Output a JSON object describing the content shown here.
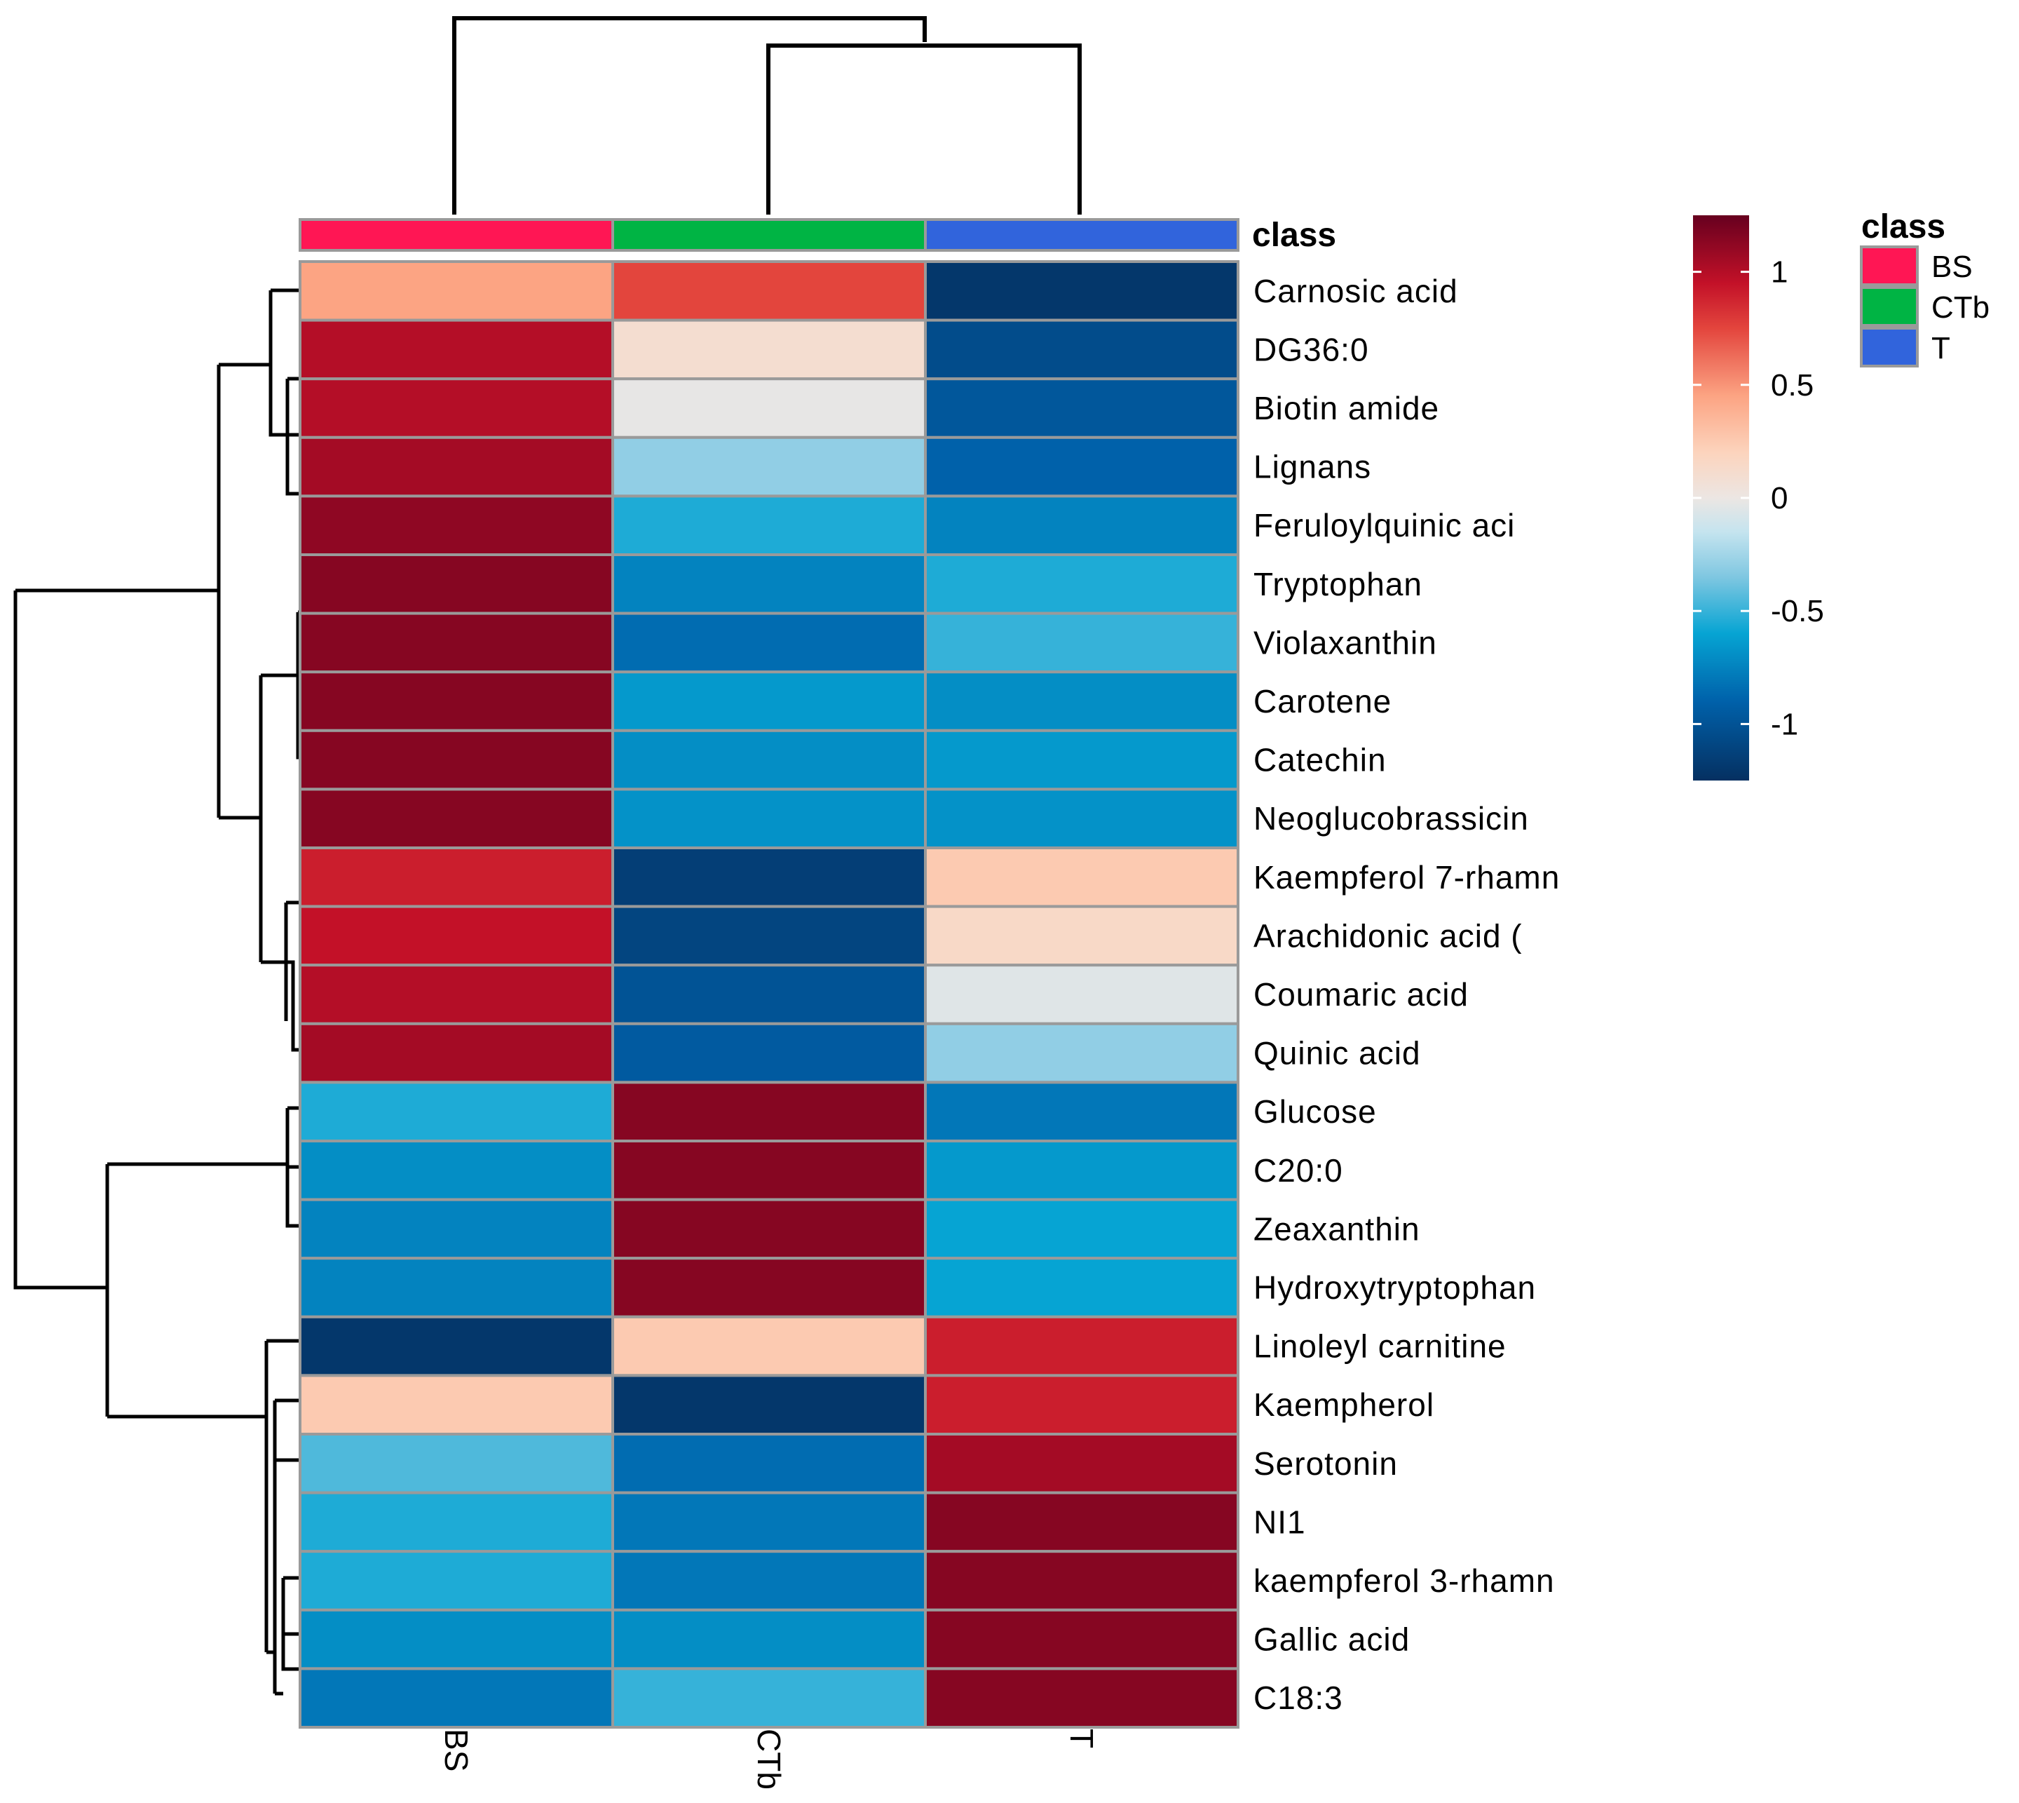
{
  "chart_data": {
    "type": "heatmap",
    "title": "",
    "annotation_title": "class",
    "columns": [
      "BS",
      "CTb",
      "T"
    ],
    "column_classes": [
      {
        "name": "BS",
        "color": "#ff1654"
      },
      {
        "name": "CTb",
        "color": "#00b444"
      },
      {
        "name": "T",
        "color": "#3164dc"
      }
    ],
    "rows": [
      "Carnosic acid",
      "DG36:0",
      "Biotin amide",
      "Lignans",
      "Feruloylquinic aci",
      "Tryptophan",
      "Violaxanthin",
      "Carotene",
      "Catechin",
      "Neoglucobrassicin",
      "Kaempferol 7-rhamn",
      "Arachidonic acid (",
      "Coumaric acid",
      "Quinic acid",
      "Glucose",
      "C20:0",
      "Zeaxanthin",
      "Hydroxytryptophan",
      "Linoleyl carnitine",
      "Kaempherol",
      "Serotonin",
      "NI1",
      "kaempferol 3-rhamn",
      "Gallic acid",
      "C18:3"
    ],
    "values": [
      [
        0.45,
        0.75,
        -1.2
      ],
      [
        1.0,
        0.1,
        -1.05
      ],
      [
        1.0,
        -0.02,
        -0.97
      ],
      [
        1.05,
        -0.3,
        -0.9
      ],
      [
        1.12,
        -0.55,
        -0.75
      ],
      [
        1.15,
        -0.75,
        -0.55
      ],
      [
        1.15,
        -0.85,
        -0.5
      ],
      [
        1.15,
        -0.65,
        -0.7
      ],
      [
        1.15,
        -0.7,
        -0.65
      ],
      [
        1.15,
        -0.68,
        -0.68
      ],
      [
        0.9,
        -1.15,
        0.25
      ],
      [
        0.95,
        -1.1,
        0.15
      ],
      [
        1.0,
        -1.0,
        -0.05
      ],
      [
        1.05,
        -0.95,
        -0.3
      ],
      [
        -0.55,
        1.15,
        -0.8
      ],
      [
        -0.7,
        1.15,
        -0.65
      ],
      [
        -0.75,
        1.15,
        -0.6
      ],
      [
        -0.75,
        1.15,
        -0.6
      ],
      [
        -1.2,
        0.25,
        0.9
      ],
      [
        0.25,
        -1.2,
        0.9
      ],
      [
        -0.45,
        -0.85,
        1.05
      ],
      [
        -0.55,
        -0.8,
        1.15
      ],
      [
        -0.55,
        -0.8,
        1.15
      ],
      [
        -0.7,
        -0.7,
        1.15
      ],
      [
        -0.8,
        -0.5,
        1.15
      ]
    ],
    "color_scale": {
      "min": -1.25,
      "max": 1.25,
      "stops": [
        {
          "value": -1.25,
          "color": "#053061"
        },
        {
          "value": -0.9,
          "color": "#0061aa"
        },
        {
          "value": -0.6,
          "color": "#06a4d3"
        },
        {
          "value": -0.35,
          "color": "#7fc7e1"
        },
        {
          "value": -0.15,
          "color": "#c5e4ef"
        },
        {
          "value": 0.0,
          "color": "#ece6e3"
        },
        {
          "value": 0.2,
          "color": "#fcd4bd"
        },
        {
          "value": 0.45,
          "color": "#fca483"
        },
        {
          "value": 0.75,
          "color": "#e3453d"
        },
        {
          "value": 0.95,
          "color": "#c31128"
        },
        {
          "value": 1.25,
          "color": "#67001f"
        }
      ],
      "ticks": [
        1,
        0.5,
        0,
        -0.5,
        -1
      ],
      "tick_labels": [
        "1",
        "0.5",
        "0",
        "-0.5",
        "-1"
      ]
    },
    "row_dendrogram": "hierarchical clustering of rows",
    "column_dendrogram": "hierarchical clustering of columns"
  }
}
